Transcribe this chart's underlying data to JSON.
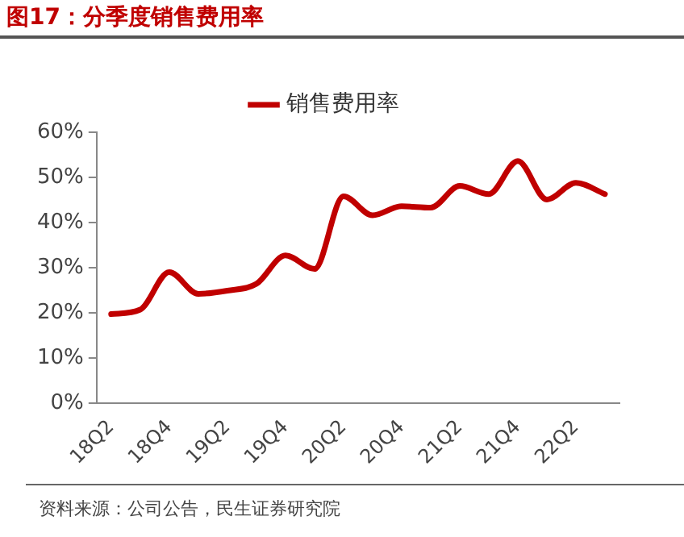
{
  "chart_data": {
    "type": "line",
    "title": "图17：分季度销售费用率",
    "categories": [
      "18Q2",
      null,
      "18Q4",
      null,
      "19Q2",
      null,
      "19Q4",
      null,
      "20Q2",
      null,
      "20Q4",
      null,
      "21Q2",
      null,
      "21Q4",
      null,
      "22Q2",
      null
    ],
    "series": [
      {
        "name": "销售费用率",
        "color": "#c00000",
        "values": [
          19.7,
          20.7,
          29,
          24.2,
          24.9,
          26.4,
          32.7,
          29.7,
          45.8,
          41.6,
          43.6,
          43.3,
          48.1,
          46.3,
          53.6,
          45.1,
          48.8,
          46.3
        ]
      }
    ],
    "ylim": [
      0,
      60
    ],
    "yticks": [
      {
        "value": 0,
        "label": "0%"
      },
      {
        "value": 10,
        "label": "10%"
      },
      {
        "value": 20,
        "label": "20%"
      },
      {
        "value": 30,
        "label": "30%"
      },
      {
        "value": 40,
        "label": "40%"
      },
      {
        "value": 50,
        "label": "50%"
      },
      {
        "value": 60,
        "label": "60%"
      }
    ],
    "grid": false,
    "legend": "top",
    "marker": "none",
    "line_style": "solid",
    "annotations": [
      "资料来源：公司公告，民生证券研究院"
    ]
  }
}
